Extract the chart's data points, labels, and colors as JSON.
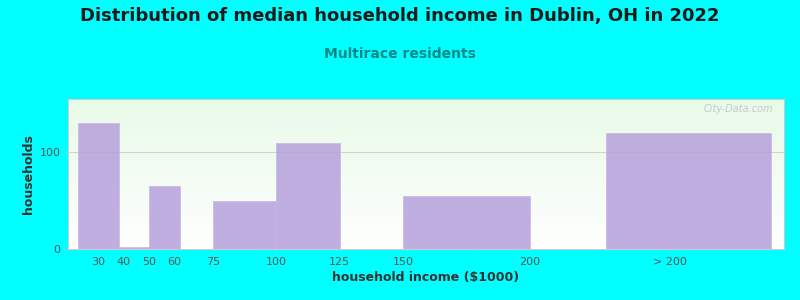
{
  "title": "Distribution of median household income in Dublin, OH in 2022",
  "subtitle": "Multirace residents",
  "xlabel": "household income ($1000)",
  "ylabel": "households",
  "background_outer": "#00FFFF",
  "bar_color": "#b39ddb",
  "bar_edge_color": "#c8b4e8",
  "bar_alpha": 0.82,
  "categories": [
    "30",
    "40",
    "50",
    "60",
    "75",
    "100",
    "125",
    "150",
    "200",
    "> 200"
  ],
  "values": [
    130,
    2,
    65,
    0,
    50,
    110,
    0,
    55,
    0,
    120
  ],
  "bar_lefts": [
    22,
    38,
    50,
    62,
    75,
    100,
    125,
    150,
    200,
    230
  ],
  "bar_widths": [
    16,
    12,
    12,
    0,
    25,
    25,
    0,
    50,
    0,
    65
  ],
  "tick_x": [
    30,
    40,
    50,
    60,
    75,
    100,
    125,
    150,
    200
  ],
  "tick_labels": [
    "30",
    "40",
    "50",
    "60",
    "75",
    "100",
    "125",
    "150",
    "200"
  ],
  "last_tick_x": 255,
  "last_tick_label": "> 200",
  "xlim": [
    18,
    300
  ],
  "ylim": [
    0,
    155
  ],
  "yticks": [
    0,
    100
  ],
  "grid_y": 100,
  "title_fontsize": 13,
  "subtitle_fontsize": 10,
  "axis_label_fontsize": 9,
  "tick_fontsize": 8,
  "watermark": "City-Data.com"
}
